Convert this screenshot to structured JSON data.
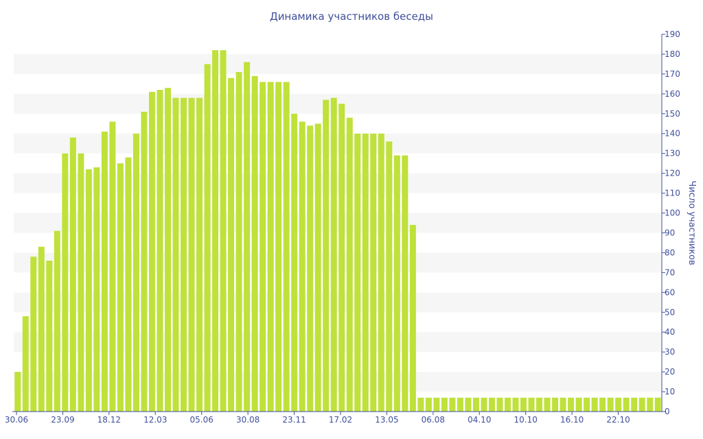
{
  "chart_data": {
    "type": "bar",
    "title": "Динамика участников беседы",
    "ylabel": "Число участников",
    "ylim": [
      0,
      190
    ],
    "y_ticks": [
      0,
      10,
      20,
      30,
      40,
      50,
      60,
      70,
      80,
      90,
      100,
      110,
      120,
      130,
      140,
      150,
      160,
      170,
      180,
      190
    ],
    "x_tick_labels": [
      "30.06",
      "23.09",
      "18.12",
      "12.03",
      "05.06",
      "30.08",
      "23.11",
      "17.02",
      "13.05",
      "06.08",
      "04.10",
      "10.10",
      "16.10",
      "22.10"
    ],
    "values": [
      20,
      48,
      78,
      83,
      76,
      91,
      130,
      138,
      130,
      122,
      123,
      141,
      146,
      125,
      128,
      140,
      151,
      161,
      162,
      163,
      158,
      158,
      158,
      158,
      175,
      182,
      182,
      168,
      171,
      176,
      169,
      166,
      166,
      166,
      166,
      150,
      146,
      144,
      145,
      157,
      158,
      155,
      148,
      140,
      140,
      140,
      140,
      136,
      129,
      129,
      94,
      7,
      7,
      7,
      7,
      7,
      7,
      7,
      7,
      7,
      7,
      7,
      7,
      7,
      7,
      7,
      7,
      7,
      7,
      7,
      7,
      7,
      7,
      7,
      7,
      7,
      7,
      7,
      7,
      7,
      7,
      7
    ],
    "grid": "alternating horizontal bands",
    "yaxis_position": "right"
  }
}
